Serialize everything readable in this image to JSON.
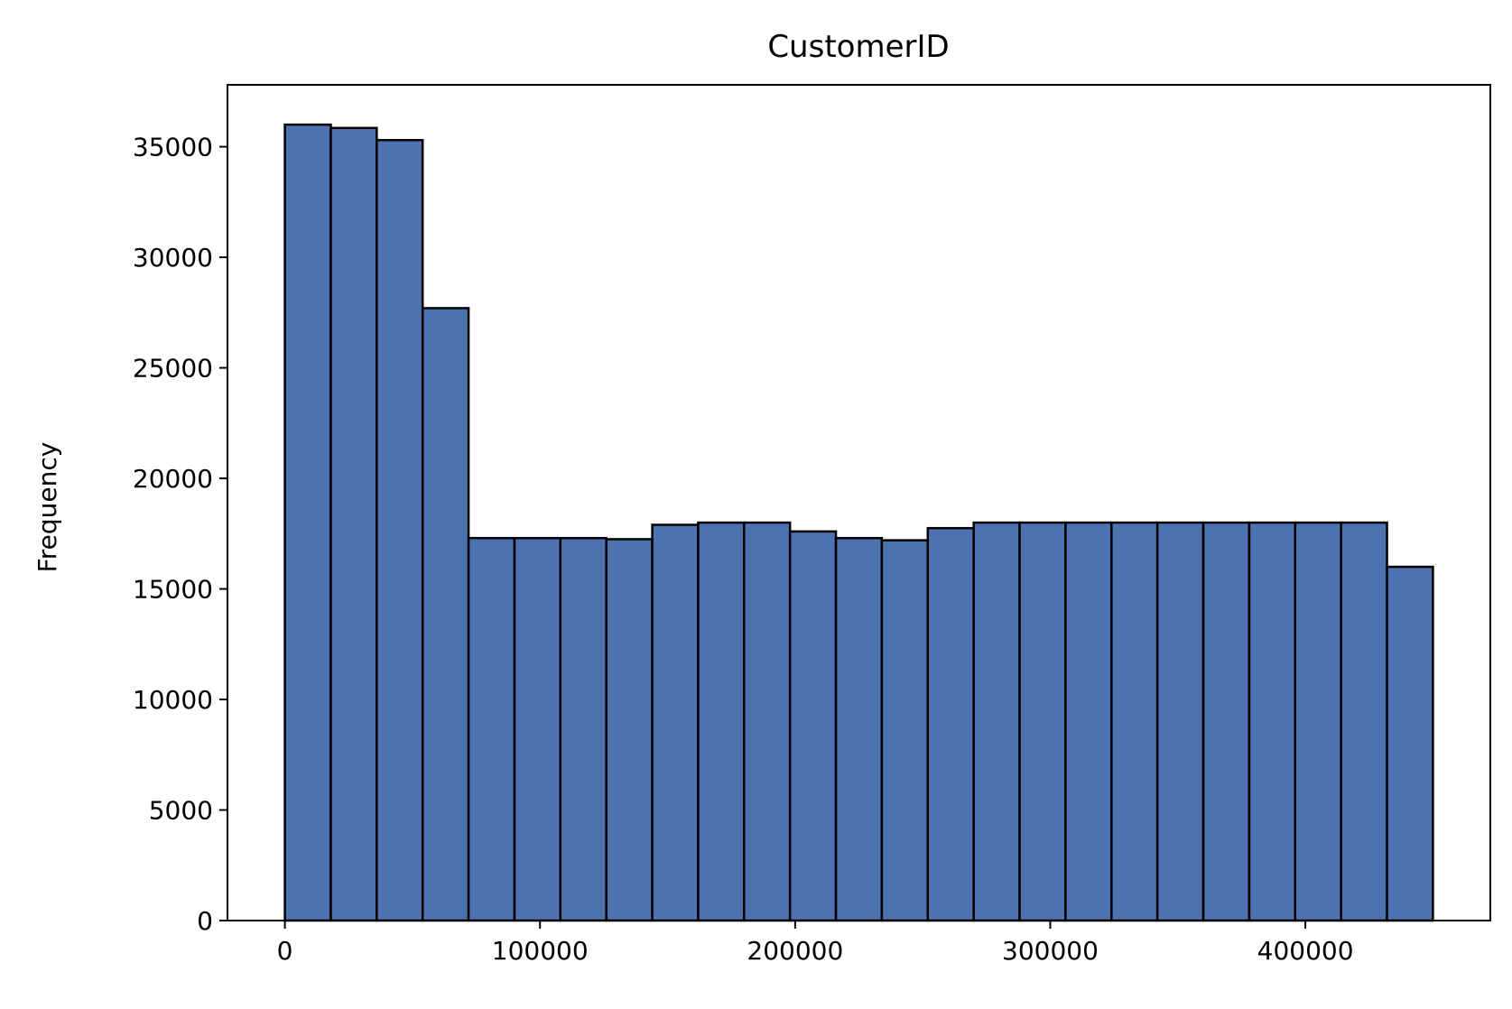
{
  "chart_data": {
    "type": "bar",
    "title": "CustomerID",
    "xlabel": "",
    "ylabel": "Frequency",
    "bin_edges": [
      0,
      18000,
      36000,
      54000,
      72000,
      90000,
      108000,
      126000,
      144000,
      162000,
      180000,
      198000,
      216000,
      234000,
      252000,
      270000,
      288000,
      306000,
      324000,
      342000,
      360000,
      378000,
      396000,
      414000,
      432000,
      450000
    ],
    "values": [
      36000,
      35850,
      35300,
      27700,
      17300,
      17300,
      17300,
      17250,
      17900,
      18000,
      18000,
      17600,
      17300,
      17200,
      17750,
      18000,
      18000,
      18000,
      18000,
      18000,
      18000,
      18000,
      18000,
      18000,
      16000
    ],
    "xlim": [
      -22500,
      472500
    ],
    "ylim": [
      0,
      37800
    ],
    "xticks": [
      0,
      100000,
      200000,
      300000,
      400000
    ],
    "xtick_labels": [
      "0",
      "100000",
      "200000",
      "300000",
      "400000"
    ],
    "yticks": [
      0,
      5000,
      10000,
      15000,
      20000,
      25000,
      30000,
      35000
    ],
    "ytick_labels": [
      "0",
      "5000",
      "10000",
      "15000",
      "20000",
      "25000",
      "30000",
      "35000"
    ],
    "bar_color": "#4c72b0",
    "edge_color": "#000000",
    "grid": false,
    "legend": false
  }
}
